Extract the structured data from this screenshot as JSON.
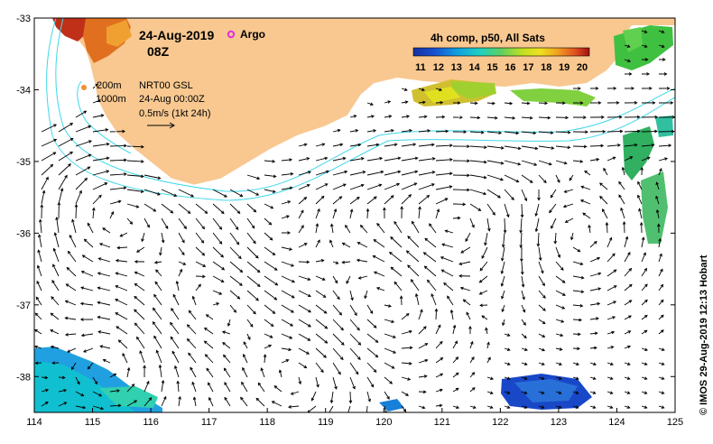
{
  "title": {
    "date": "24-Aug-2019",
    "time": "08Z",
    "argo_label": "Argo"
  },
  "info": {
    "depth_200": "200m",
    "depth_1000": "1000m",
    "product": "NRT00 GSL",
    "product_time": "24-Aug 00:00Z",
    "scale_label": "0.5m/s (1kt 24h)"
  },
  "colorbar": {
    "label": "4h comp, p50, All Sats",
    "ticks": [
      "11",
      "12",
      "13",
      "14",
      "15",
      "16",
      "17",
      "18",
      "19",
      "20"
    ],
    "min": 11,
    "max": 20
  },
  "credit": "© IMOS 29-Aug-2019 12:13 Hobart",
  "axes": {
    "lon_ticks": [
      "114",
      "115",
      "116",
      "117",
      "118",
      "119",
      "120",
      "121",
      "122",
      "123",
      "124",
      "125"
    ],
    "lat_ticks": [
      "-33",
      "-34",
      "-35",
      "-36",
      "-37",
      "-38"
    ],
    "lon_range": [
      114,
      125
    ],
    "lat_range": [
      -38.5,
      -33
    ]
  },
  "colors": {
    "land": "#f8c890",
    "contour": "#40d8e8",
    "argo": "#e030e0",
    "arrow": "#000000"
  }
}
